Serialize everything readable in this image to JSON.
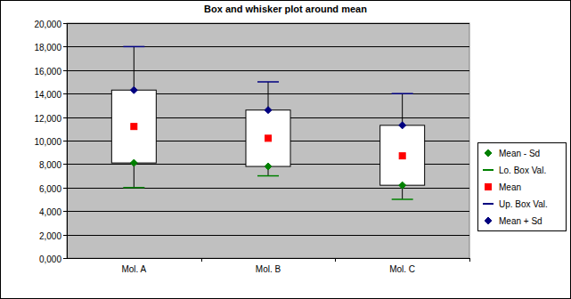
{
  "chart_data": {
    "type": "box",
    "title": "Box and whisker plot around mean",
    "categories": [
      "Mol. A",
      "Mol. B",
      "Mol. C"
    ],
    "series": [
      {
        "name": "Mean - Sd",
        "color": "#008000",
        "marker": "diamond",
        "values": [
          8100,
          7800,
          6200
        ]
      },
      {
        "name": "Lo. Box Val.",
        "color": "#008000",
        "marker": "dash",
        "values": [
          6000,
          7000,
          5000
        ]
      },
      {
        "name": "Mean",
        "color": "#ff0000",
        "marker": "square",
        "values": [
          11200,
          10200,
          8700
        ]
      },
      {
        "name": "Up. Box Val.",
        "color": "#000080",
        "marker": "dash",
        "values": [
          18000,
          15000,
          14000
        ]
      },
      {
        "name": "Mean + Sd",
        "color": "#000080",
        "marker": "diamond",
        "values": [
          14300,
          12600,
          11300
        ]
      }
    ],
    "ylim": [
      0,
      20000
    ],
    "yticks": [
      {
        "value": 0,
        "label": "0,000"
      },
      {
        "value": 2000,
        "label": "2,000"
      },
      {
        "value": 4000,
        "label": "4,000"
      },
      {
        "value": 6000,
        "label": "6,000"
      },
      {
        "value": 8000,
        "label": "8,000"
      },
      {
        "value": 10000,
        "label": "10,000"
      },
      {
        "value": 12000,
        "label": "12,000"
      },
      {
        "value": 14000,
        "label": "14,000"
      },
      {
        "value": 16000,
        "label": "16,000"
      },
      {
        "value": 18000,
        "label": "18,000"
      },
      {
        "value": 20000,
        "label": "20,000"
      }
    ],
    "grid": true,
    "legend": "right"
  }
}
